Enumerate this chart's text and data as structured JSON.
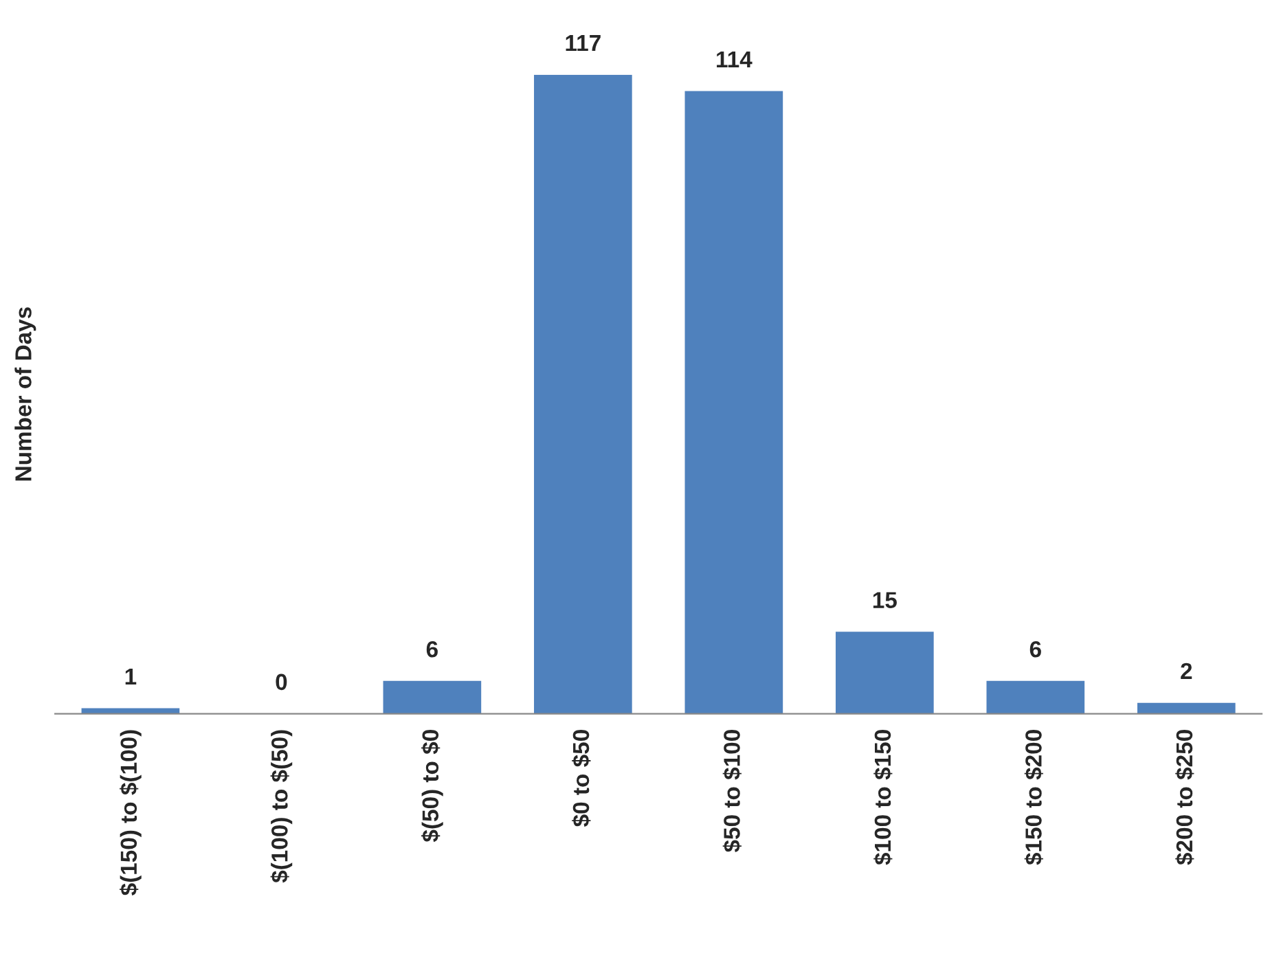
{
  "chart_data": {
    "type": "bar",
    "ylabel": "Number of Days",
    "categories": [
      "$(150) to $(100)",
      "$(100) to $(50)",
      "$(50) to $0",
      "$0 to $50",
      "$50 to $100",
      "$100 to $150",
      "$150 to $200",
      "$200 to $250"
    ],
    "values": [
      1,
      0,
      6,
      117,
      114,
      15,
      6,
      2
    ],
    "color": "#4f81bd",
    "data_labels": true,
    "grid": false,
    "legend": false
  }
}
